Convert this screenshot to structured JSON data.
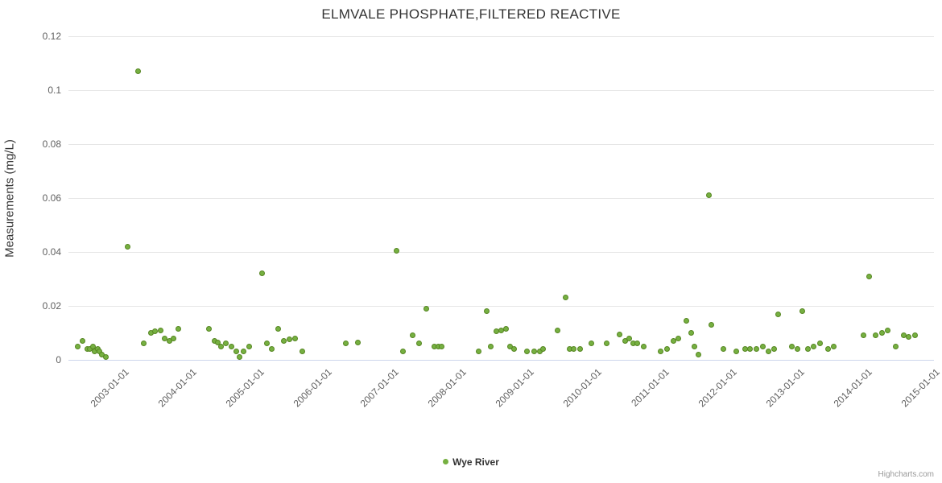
{
  "title": "ELMVALE PHOSPHATE,FILTERED REACTIVE",
  "legend": {
    "label": "Wye River"
  },
  "credits": "Highcharts.com",
  "colors": {
    "series": "#76b041",
    "grid": "#e6e6e6",
    "axis_line": "#ccd6eb",
    "tick_text": "#606060",
    "title_text": "#333333"
  },
  "chart_data": {
    "type": "scatter",
    "title": "ELMVALE PHOSPHATE,FILTERED REACTIVE",
    "xlabel": "",
    "ylabel": "Measurements (mg/L)",
    "legend_position": "bottom-center",
    "grid": true,
    "ylim": [
      0,
      0.12
    ],
    "y_ticks": [
      {
        "value": 0,
        "label": "0"
      },
      {
        "value": 0.02,
        "label": "0.02"
      },
      {
        "value": 0.04,
        "label": "0.04"
      },
      {
        "value": 0.06,
        "label": "0.06"
      },
      {
        "value": 0.08,
        "label": "0.08"
      },
      {
        "value": 0.1,
        "label": "0.1"
      },
      {
        "value": 0.12,
        "label": "0.12"
      }
    ],
    "xlim_years": [
      2002.24,
      2015.05
    ],
    "x_ticks": [
      {
        "value": 2003,
        "label": "2003-01-01"
      },
      {
        "value": 2004,
        "label": "2004-01-01"
      },
      {
        "value": 2005,
        "label": "2005-01-01"
      },
      {
        "value": 2006,
        "label": "2006-01-01"
      },
      {
        "value": 2007,
        "label": "2007-01-01"
      },
      {
        "value": 2008,
        "label": "2008-01-01"
      },
      {
        "value": 2009,
        "label": "2009-01-01"
      },
      {
        "value": 2010,
        "label": "2010-01-01"
      },
      {
        "value": 2011,
        "label": "2011-01-01"
      },
      {
        "value": 2012,
        "label": "2012-01-01"
      },
      {
        "value": 2013,
        "label": "2013-01-01"
      },
      {
        "value": 2014,
        "label": "2014-01-01"
      },
      {
        "value": 2015,
        "label": "2015-01-01"
      }
    ],
    "series": [
      {
        "name": "Wye River",
        "color": "#76b041",
        "points": [
          [
            2002.38,
            0.005
          ],
          [
            2002.45,
            0.007
          ],
          [
            2002.52,
            0.004
          ],
          [
            2002.56,
            0.004
          ],
          [
            2002.6,
            0.005
          ],
          [
            2002.63,
            0.003
          ],
          [
            2002.67,
            0.004
          ],
          [
            2002.7,
            0.003
          ],
          [
            2002.74,
            0.002
          ],
          [
            2002.79,
            0.001
          ],
          [
            2003.12,
            0.042
          ],
          [
            2003.27,
            0.107
          ],
          [
            2003.36,
            0.006
          ],
          [
            2003.46,
            0.01
          ],
          [
            2003.52,
            0.0105
          ],
          [
            2003.6,
            0.011
          ],
          [
            2003.66,
            0.008
          ],
          [
            2003.73,
            0.007
          ],
          [
            2003.79,
            0.008
          ],
          [
            2003.87,
            0.0115
          ],
          [
            2004.32,
            0.0115
          ],
          [
            2004.4,
            0.007
          ],
          [
            2004.45,
            0.0065
          ],
          [
            2004.5,
            0.005
          ],
          [
            2004.57,
            0.006
          ],
          [
            2004.65,
            0.005
          ],
          [
            2004.73,
            0.003
          ],
          [
            2004.77,
            0.001
          ],
          [
            2004.83,
            0.003
          ],
          [
            2004.91,
            0.005
          ],
          [
            2005.1,
            0.032
          ],
          [
            2005.18,
            0.006
          ],
          [
            2005.25,
            0.004
          ],
          [
            2005.34,
            0.0115
          ],
          [
            2005.43,
            0.007
          ],
          [
            2005.51,
            0.0075
          ],
          [
            2005.6,
            0.008
          ],
          [
            2005.7,
            0.003
          ],
          [
            2006.34,
            0.006
          ],
          [
            2006.52,
            0.0065
          ],
          [
            2007.09,
            0.0405
          ],
          [
            2007.19,
            0.003
          ],
          [
            2007.34,
            0.009
          ],
          [
            2007.43,
            0.006
          ],
          [
            2007.54,
            0.019
          ],
          [
            2007.66,
            0.005
          ],
          [
            2007.71,
            0.005
          ],
          [
            2007.76,
            0.005
          ],
          [
            2008.31,
            0.003
          ],
          [
            2008.43,
            0.018
          ],
          [
            2008.49,
            0.005
          ],
          [
            2008.57,
            0.0105
          ],
          [
            2008.64,
            0.011
          ],
          [
            2008.72,
            0.0115
          ],
          [
            2008.78,
            0.005
          ],
          [
            2008.84,
            0.004
          ],
          [
            2009.03,
            0.003
          ],
          [
            2009.13,
            0.003
          ],
          [
            2009.22,
            0.003
          ],
          [
            2009.27,
            0.004
          ],
          [
            2009.48,
            0.011
          ],
          [
            2009.6,
            0.023
          ],
          [
            2009.66,
            0.004
          ],
          [
            2009.72,
            0.004
          ],
          [
            2009.81,
            0.004
          ],
          [
            2009.98,
            0.006
          ],
          [
            2010.21,
            0.006
          ],
          [
            2010.4,
            0.0095
          ],
          [
            2010.48,
            0.007
          ],
          [
            2010.54,
            0.008
          ],
          [
            2010.6,
            0.006
          ],
          [
            2010.66,
            0.006
          ],
          [
            2010.75,
            0.005
          ],
          [
            2011.01,
            0.003
          ],
          [
            2011.1,
            0.004
          ],
          [
            2011.19,
            0.007
          ],
          [
            2011.27,
            0.008
          ],
          [
            2011.39,
            0.0145
          ],
          [
            2011.46,
            0.01
          ],
          [
            2011.5,
            0.005
          ],
          [
            2011.57,
            0.002
          ],
          [
            2011.72,
            0.061
          ],
          [
            2011.76,
            0.013
          ],
          [
            2011.93,
            0.004
          ],
          [
            2012.13,
            0.003
          ],
          [
            2012.25,
            0.004
          ],
          [
            2012.33,
            0.004
          ],
          [
            2012.42,
            0.004
          ],
          [
            2012.52,
            0.005
          ],
          [
            2012.6,
            0.003
          ],
          [
            2012.68,
            0.004
          ],
          [
            2012.75,
            0.017
          ],
          [
            2012.95,
            0.005
          ],
          [
            2013.03,
            0.004
          ],
          [
            2013.1,
            0.018
          ],
          [
            2013.19,
            0.004
          ],
          [
            2013.27,
            0.005
          ],
          [
            2013.36,
            0.006
          ],
          [
            2013.48,
            0.004
          ],
          [
            2013.57,
            0.005
          ],
          [
            2014.01,
            0.009
          ],
          [
            2014.09,
            0.031
          ],
          [
            2014.19,
            0.009
          ],
          [
            2014.28,
            0.01
          ],
          [
            2014.36,
            0.011
          ],
          [
            2014.48,
            0.005
          ],
          [
            2014.6,
            0.009
          ],
          [
            2014.68,
            0.0085
          ],
          [
            2014.77,
            0.009
          ]
        ]
      }
    ]
  }
}
